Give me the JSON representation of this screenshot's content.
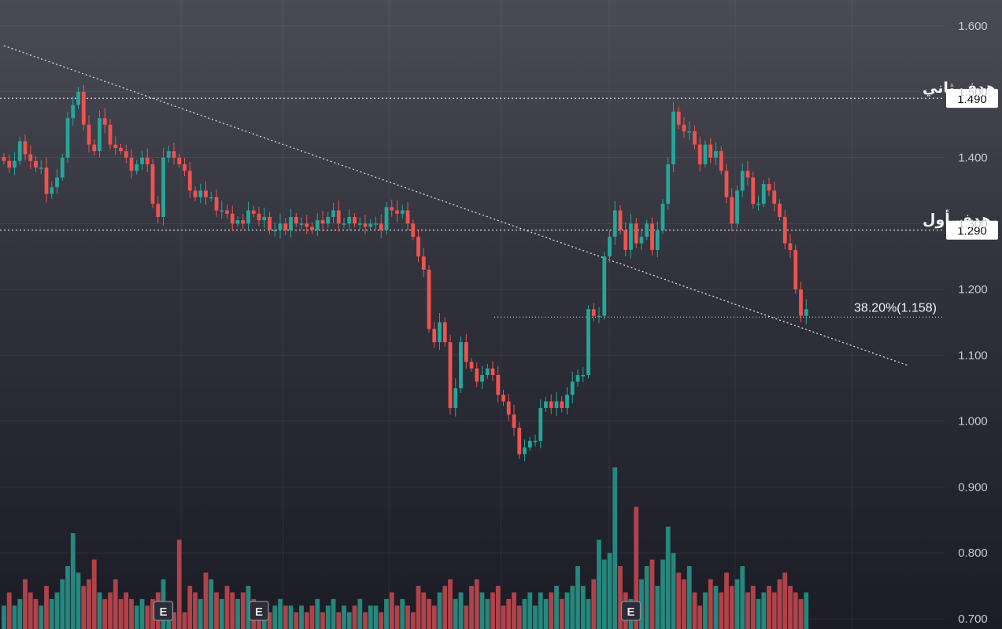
{
  "chart_data": {
    "type": "candlestick",
    "y_axis": {
      "ticks": [
        "1.600",
        "1.500",
        "1.400",
        "1.300",
        "1.200",
        "1.100",
        "1.000",
        "0.900",
        "0.800",
        "0.700"
      ],
      "ylim": [
        0.69,
        1.63
      ],
      "position": "right"
    },
    "grid": true,
    "horizontal_levels": [
      {
        "label": "هدف ثاني",
        "value": 1.49,
        "price_tag": "1.490"
      },
      {
        "label": "هدف أول",
        "value": 1.29,
        "price_tag": "1.290"
      }
    ],
    "fib_level": {
      "label": "38.20%(1.158)",
      "value": 1.158
    },
    "trendline": {
      "from": {
        "bar": 0,
        "value": 1.57
      },
      "to": {
        "bar": 170,
        "value": 1.085
      }
    },
    "earnings_markers": [
      {
        "label": "E",
        "bar": 30
      },
      {
        "label": "E",
        "bar": 48
      },
      {
        "label": "E",
        "bar": 118
      }
    ],
    "colors": {
      "up": "#26a69a",
      "down": "#ef5350",
      "volume_up": "#26877d",
      "volume_down": "#b0434a",
      "tag_bg": "#ffffff",
      "tag_text": "#111111",
      "axis_text": "#c8c9cf"
    },
    "closes": [
      1.395,
      1.385,
      1.395,
      1.425,
      1.405,
      1.395,
      1.385,
      1.385,
      1.345,
      1.355,
      1.37,
      1.4,
      1.46,
      1.48,
      1.5,
      1.45,
      1.42,
      1.41,
      1.46,
      1.45,
      1.42,
      1.415,
      1.41,
      1.4,
      1.38,
      1.39,
      1.4,
      1.39,
      1.33,
      1.31,
      1.4,
      1.41,
      1.4,
      1.39,
      1.38,
      1.35,
      1.34,
      1.35,
      1.34,
      1.34,
      1.32,
      1.32,
      1.315,
      1.3,
      1.305,
      1.3,
      1.32,
      1.315,
      1.305,
      1.31,
      1.29,
      1.29,
      1.3,
      1.29,
      1.31,
      1.3,
      1.3,
      1.295,
      1.29,
      1.305,
      1.3,
      1.31,
      1.32,
      1.3,
      1.3,
      1.31,
      1.3,
      1.3,
      1.295,
      1.3,
      1.3,
      1.29,
      1.325,
      1.32,
      1.315,
      1.32,
      1.3,
      1.28,
      1.25,
      1.23,
      1.14,
      1.12,
      1.15,
      1.12,
      1.02,
      1.05,
      1.12,
      1.09,
      1.08,
      1.06,
      1.07,
      1.08,
      1.07,
      1.04,
      1.03,
      1.01,
      0.99,
      0.95,
      0.96,
      0.97,
      0.97,
      1.02,
      1.03,
      1.02,
      1.03,
      1.02,
      1.04,
      1.06,
      1.07,
      1.07,
      1.17,
      1.16,
      1.16,
      1.25,
      1.28,
      1.32,
      1.29,
      1.26,
      1.3,
      1.27,
      1.28,
      1.3,
      1.26,
      1.29,
      1.33,
      1.39,
      1.47,
      1.45,
      1.44,
      1.44,
      1.42,
      1.39,
      1.42,
      1.4,
      1.41,
      1.38,
      1.34,
      1.3,
      1.35,
      1.38,
      1.37,
      1.33,
      1.33,
      1.36,
      1.35,
      1.33,
      1.31,
      1.27,
      1.26,
      1.2,
      1.16,
      1.17
    ],
    "volumes": [
      0.72,
      0.74,
      0.72,
      0.73,
      0.76,
      0.74,
      0.73,
      0.72,
      0.75,
      0.73,
      0.74,
      0.76,
      0.78,
      0.83,
      0.77,
      0.75,
      0.76,
      0.79,
      0.74,
      0.73,
      0.74,
      0.76,
      0.73,
      0.74,
      0.73,
      0.72,
      0.73,
      0.72,
      0.73,
      0.74,
      0.76,
      0.71,
      0.71,
      0.82,
      0.71,
      0.75,
      0.74,
      0.73,
      0.77,
      0.76,
      0.74,
      0.73,
      0.75,
      0.74,
      0.73,
      0.74,
      0.75,
      0.73,
      0.72,
      0.71,
      0.71,
      0.72,
      0.73,
      0.72,
      0.72,
      0.71,
      0.72,
      0.71,
      0.72,
      0.73,
      0.71,
      0.72,
      0.73,
      0.71,
      0.72,
      0.71,
      0.72,
      0.73,
      0.71,
      0.72,
      0.72,
      0.71,
      0.73,
      0.74,
      0.72,
      0.73,
      0.72,
      0.71,
      0.75,
      0.74,
      0.73,
      0.72,
      0.74,
      0.75,
      0.76,
      0.73,
      0.74,
      0.72,
      0.75,
      0.76,
      0.74,
      0.73,
      0.74,
      0.75,
      0.72,
      0.73,
      0.74,
      0.72,
      0.73,
      0.74,
      0.72,
      0.74,
      0.73,
      0.74,
      0.75,
      0.73,
      0.74,
      0.75,
      0.78,
      0.75,
      0.73,
      0.76,
      0.82,
      0.79,
      0.8,
      0.93,
      0.78,
      0.74,
      0.73,
      0.87,
      0.76,
      0.78,
      0.79,
      0.75,
      0.79,
      0.84,
      0.8,
      0.77,
      0.76,
      0.78,
      0.74,
      0.72,
      0.74,
      0.76,
      0.75,
      0.74,
      0.77,
      0.75,
      0.76,
      0.78,
      0.74,
      0.75,
      0.73,
      0.74,
      0.75,
      0.74,
      0.76,
      0.77,
      0.75,
      0.74,
      0.73,
      0.74
    ]
  }
}
